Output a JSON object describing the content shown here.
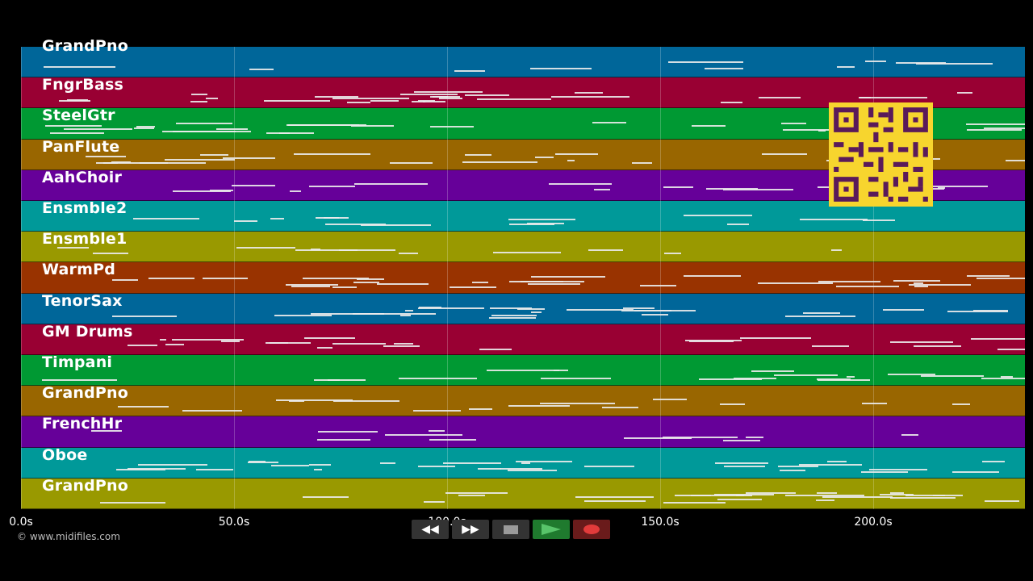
{
  "tracks": [
    {
      "name": "GrandPno",
      "color": "#006699"
    },
    {
      "name": "FngrBass",
      "color": "#990033"
    },
    {
      "name": "SteelGtr",
      "color": "#009933"
    },
    {
      "name": "PanFlute",
      "color": "#996600"
    },
    {
      "name": "AahChoir",
      "color": "#660099"
    },
    {
      "name": "Ensmble2",
      "color": "#009999"
    },
    {
      "name": "Ensmble1",
      "color": "#999900"
    },
    {
      "name": "WarmPd",
      "color": "#993300"
    },
    {
      "name": "TenorSax",
      "color": "#006699"
    },
    {
      "name": "GM Drums",
      "color": "#990033"
    },
    {
      "name": "Timpani",
      "color": "#009933"
    },
    {
      "name": "GrandPno",
      "color": "#996600"
    },
    {
      "name": "FrenchHr",
      "color": "#660099"
    },
    {
      "name": "Oboe",
      "color": "#009999"
    },
    {
      "name": "GrandPno",
      "color": "#999900"
    }
  ],
  "timeline": {
    "ticks": [
      "0.0s",
      "50.0s",
      "100.0s",
      "150.0s",
      "200.0s"
    ]
  },
  "copyright": "© www.midifiles.com",
  "transport": {
    "rewind_icon": "rewind-icon",
    "fast_forward_icon": "fast-forward-icon",
    "stop_icon": "stop-icon",
    "play_icon": "play-icon",
    "record_icon": "record-icon",
    "colors": {
      "play": "#58c46a",
      "record": "#e23b3b",
      "qr": "#f7d52e"
    }
  }
}
